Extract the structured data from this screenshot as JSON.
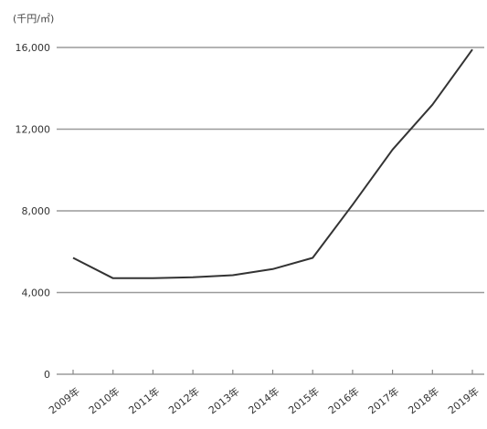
{
  "chart_data": {
    "type": "line",
    "y_unit_label": "(千円/㎡)",
    "title": "",
    "xlabel": "",
    "ylabel": "",
    "ylim": [
      0,
      16000
    ],
    "y_ticks": [
      0,
      4000,
      8000,
      12000,
      16000
    ],
    "y_tick_labels": [
      "0",
      "4,000",
      "8,000",
      "12,000",
      "16,000"
    ],
    "categories": [
      "2009年",
      "2010年",
      "2011年",
      "2012年",
      "2013年",
      "2014年",
      "2015年",
      "2016年",
      "2017年",
      "2018年",
      "2019年"
    ],
    "series": [
      {
        "name": "",
        "values": [
          5700,
          4700,
          4700,
          4750,
          4850,
          5150,
          5700,
          8300,
          11000,
          13200,
          15900
        ],
        "color": "#333333"
      }
    ],
    "grid": true,
    "legend": "none"
  }
}
